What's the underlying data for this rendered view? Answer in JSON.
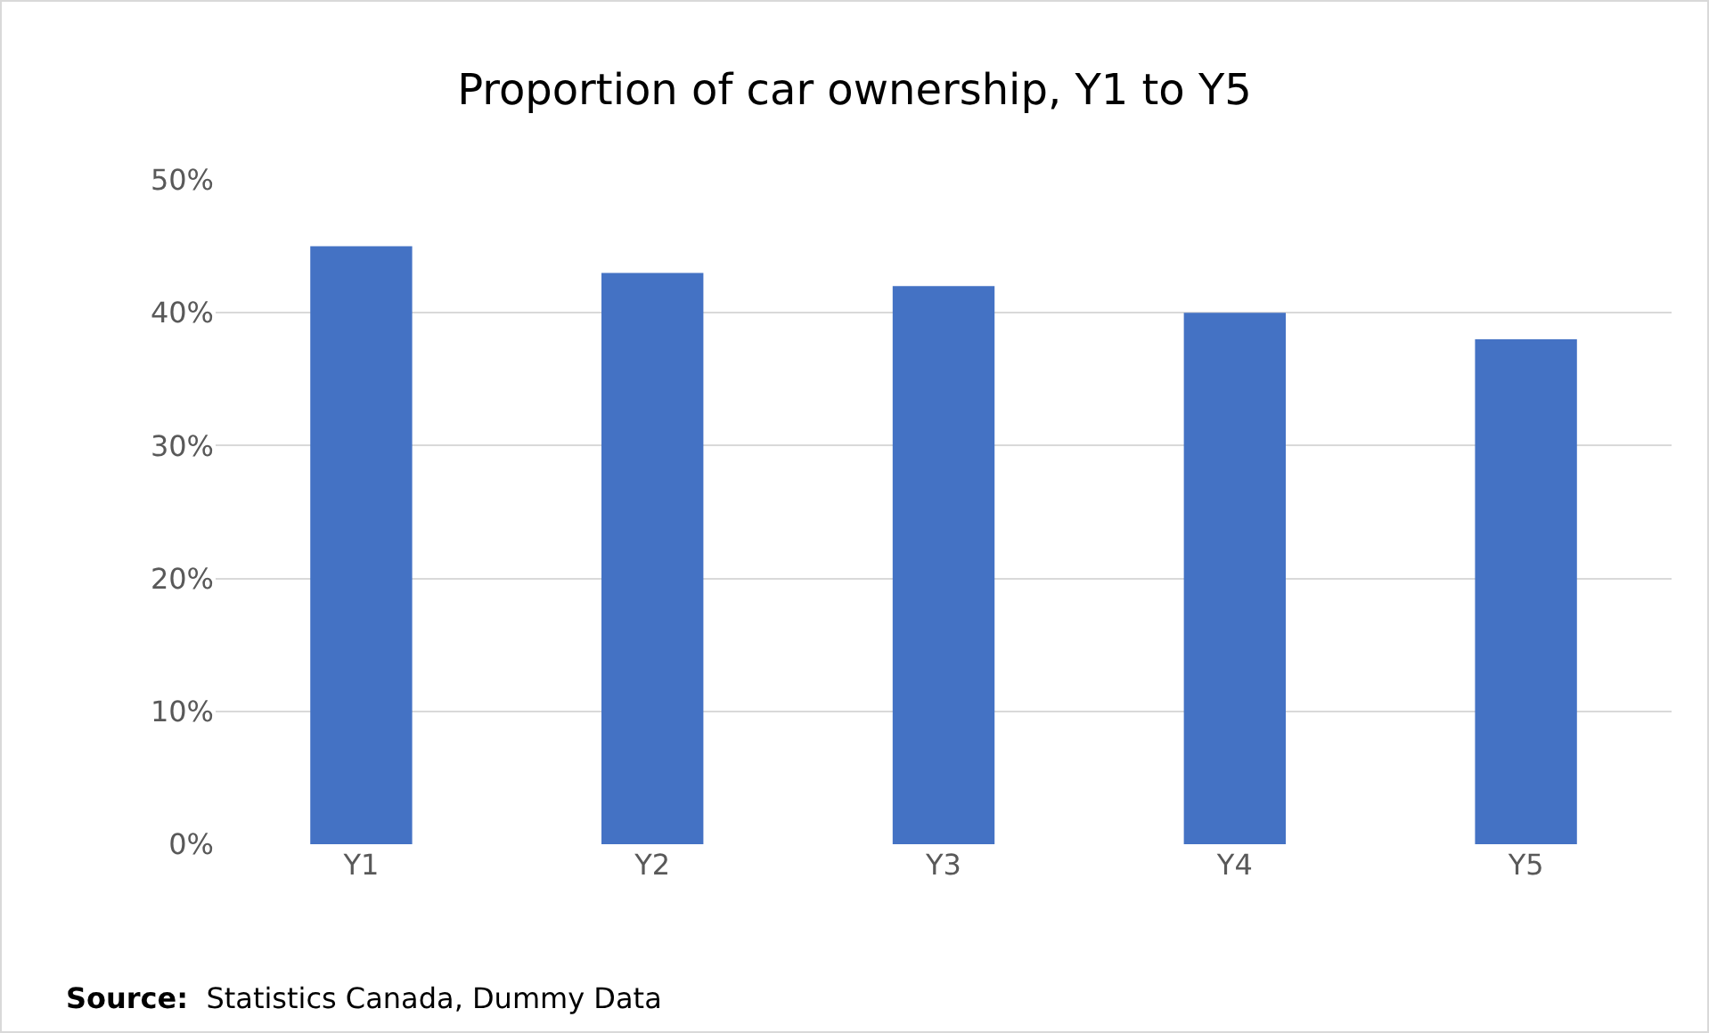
{
  "chart_data": {
    "type": "bar",
    "title": "Proportion of car ownership, Y1 to Y5",
    "categories": [
      "Y1",
      "Y2",
      "Y3",
      "Y4",
      "Y5"
    ],
    "values": [
      45,
      43,
      42,
      40,
      38
    ],
    "color": "#4472c4",
    "ylim": [
      0,
      50
    ],
    "yticks": [
      {
        "value": 0,
        "label": "0%"
      },
      {
        "value": 10,
        "label": "10%"
      },
      {
        "value": 20,
        "label": "20%"
      },
      {
        "value": 30,
        "label": "30%"
      },
      {
        "value": 40,
        "label": "40%"
      },
      {
        "value": 50,
        "label": "50%"
      }
    ],
    "grid": "y",
    "annotations": [
      "Source:  Statistics Canada, Dummy Data"
    ]
  }
}
